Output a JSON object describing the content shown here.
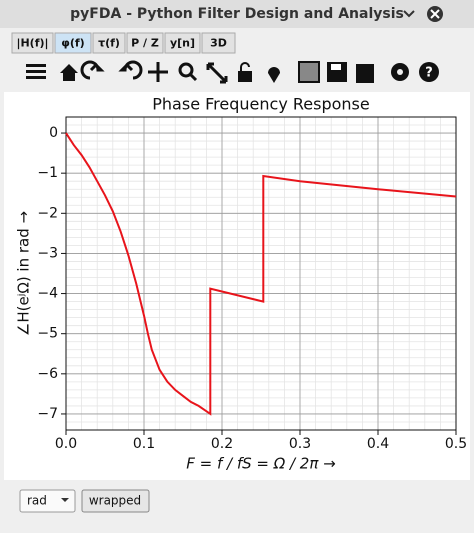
{
  "window": {
    "title": "pyFDA - Python Filter Design and Analysis"
  },
  "tabs": [
    "|H(f)|",
    "φ(f)",
    "τ(f)",
    "P / Z",
    "y[n]",
    "3D"
  ],
  "chart_data": {
    "type": "line",
    "title": "Phase Frequency Response",
    "xlabel": "F = f / fS = Ω / 2π →",
    "ylabel": "∠H(eʲΩ) in rad →",
    "x": [
      0,
      0.01,
      0.02,
      0.03,
      0.04,
      0.05,
      0.06,
      0.07,
      0.08,
      0.09,
      0.1,
      0.105,
      0.11,
      0.12,
      0.13,
      0.14,
      0.15,
      0.16,
      0.17,
      0.185,
      0.185,
      0.253,
      0.253,
      0.3,
      0.4,
      0.5
    ],
    "values": [
      0,
      -0.3,
      -0.55,
      -0.85,
      -1.2,
      -1.55,
      -1.95,
      -2.45,
      -3.05,
      -3.75,
      -4.55,
      -5.0,
      -5.4,
      -5.9,
      -6.2,
      -6.4,
      -6.55,
      -6.7,
      -6.8,
      -7.0,
      -3.88,
      -4.2,
      -1.07,
      -1.2,
      -1.4,
      -1.58
    ],
    "color": "#e8141b",
    "xlim": [
      0,
      0.5
    ],
    "ylim": [
      -7.4,
      0.4
    ],
    "xticks": [
      {
        "value": 0,
        "label": "0.0"
      },
      {
        "value": 0.1,
        "label": "0.1"
      },
      {
        "value": 0.2,
        "label": "0.2"
      },
      {
        "value": 0.3,
        "label": "0.3"
      },
      {
        "value": 0.4,
        "label": "0.4"
      },
      {
        "value": 0.5,
        "label": "0.5"
      }
    ],
    "yticks": [
      0,
      {
        "value": -1,
        "label": "−1"
      },
      {
        "value": -2,
        "label": "−2"
      },
      {
        "value": -3,
        "label": "−3"
      },
      {
        "value": -4,
        "label": "−4"
      },
      {
        "value": -5,
        "label": "−5"
      },
      {
        "value": -6,
        "label": "−6"
      },
      {
        "value": -7,
        "label": "−7"
      }
    ],
    "grid": true,
    "minor_grid": true
  },
  "controls": {
    "unit": "rad",
    "button": "wrapped"
  }
}
